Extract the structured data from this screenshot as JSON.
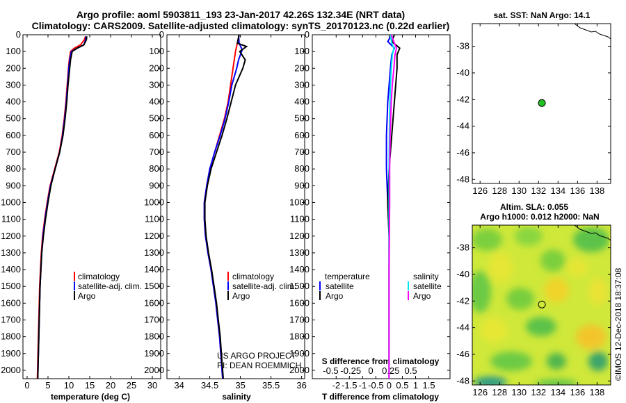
{
  "title": {
    "line1": "Argo profile: aoml 5903811_193 23-Jan-2017 42.26S 132.34E (NRT data)",
    "line2": "Climatology: CARS2009. Satellite-adjusted climatology: synTS_20170123.nc (0.22d earlier)"
  },
  "colors": {
    "climatology": "#ff0000",
    "satellite": "#0000ff",
    "argo": "#000000",
    "sat_temp": "#0000ff",
    "sat_sal": "#00e5ee",
    "argo_sal": "#ff00ff",
    "map_dot": "#22c022"
  },
  "depth_ticks": [
    "0",
    "100",
    "200",
    "300",
    "400",
    "500",
    "600",
    "700",
    "800",
    "900",
    "1000",
    "1100",
    "1200",
    "1300",
    "1400",
    "1500",
    "1600",
    "1700",
    "1800",
    "1900",
    "2000"
  ],
  "temperature_panel": {
    "xlabel": "temperature (deg C)",
    "xticks": [
      "0",
      "5",
      "10",
      "15",
      "20",
      "25",
      "30"
    ],
    "legend": [
      "climatology",
      "satellite-adj. clim.",
      "Argo"
    ]
  },
  "salinity_panel": {
    "xlabel": "salinity",
    "xticks": [
      "34",
      "34.5",
      "35",
      "35.5",
      "36"
    ],
    "legend": [
      "climatology",
      "satellite-adj. clim.",
      "Argo"
    ],
    "credit1": "US ARGO PROJECT",
    "credit2": "PI: DEAN ROEMMICH"
  },
  "difference_panel": {
    "xlabel": "T difference from climatology",
    "xticks": [
      "-2",
      "-1.5",
      "-1",
      "-0.5",
      "0",
      "0.5",
      "1",
      "1.5"
    ],
    "s_label": "S difference from climatology",
    "s_ticks": [
      "-0.5",
      "-0.25",
      "0",
      "0.25",
      "0.5"
    ],
    "legend_temp_head": "temperature",
    "legend_sal_head": "salinity",
    "legend_temp": [
      "satellite",
      "Argo"
    ],
    "legend_sal": [
      "satellite",
      "Argo"
    ]
  },
  "sst_map": {
    "title": "sat. SST: NaN Argo: 14.1",
    "yticks": [
      "-38",
      "-40",
      "-42",
      "-44",
      "-46",
      "-48"
    ],
    "xticks": [
      "126",
      "128",
      "130",
      "132",
      "134",
      "136",
      "138"
    ]
  },
  "sla_map": {
    "title1": "Altim. SLA: 0.055",
    "title2": "Argo h1000: 0.012 h2000: NaN",
    "yticks": [
      "-38",
      "-40",
      "-42",
      "-44",
      "-46",
      "-48"
    ],
    "xticks": [
      "126",
      "128",
      "130",
      "132",
      "134",
      "136",
      "138"
    ]
  },
  "footer": "©IMOS 12-Dec-2018 18:37:08",
  "chart_data": [
    {
      "type": "line",
      "name": "temperature profile",
      "xlabel": "temperature (deg C)",
      "ylabel": "depth",
      "xlim": [
        -1,
        32
      ],
      "ylim": [
        2050,
        0
      ],
      "series": [
        {
          "name": "climatology",
          "depth": [
            10,
            30,
            60,
            80,
            100,
            150,
            200,
            300,
            400,
            500,
            600,
            700,
            800,
            900,
            1000,
            1100,
            1200,
            1300,
            1400,
            1500,
            1600,
            1700,
            1800,
            1900,
            2000,
            2050
          ],
          "values": [
            14.0,
            13.7,
            12.8,
            11.3,
            10.4,
            10.1,
            9.9,
            9.6,
            9.3,
            8.9,
            8.4,
            7.7,
            6.6,
            5.5,
            4.8,
            4.2,
            3.7,
            3.4,
            3.2,
            3.0,
            2.9,
            2.8,
            2.7,
            2.6,
            2.5,
            2.45
          ]
        },
        {
          "name": "satellite-adj. clim.",
          "depth": [
            10,
            30,
            60,
            80,
            100,
            150,
            200,
            300,
            400,
            500,
            600,
            700,
            800,
            900,
            1000,
            1100,
            1200,
            1300,
            1400,
            1500,
            1600,
            1700,
            1800,
            1900,
            2000,
            2050
          ],
          "values": [
            14.1,
            14.0,
            13.6,
            12.0,
            10.6,
            10.2,
            10.0,
            9.7,
            9.4,
            9.0,
            8.5,
            7.8,
            6.7,
            5.6,
            4.9,
            4.3,
            3.8,
            3.5,
            3.3,
            3.1,
            3.0,
            2.9,
            2.8,
            2.7,
            2.6,
            2.55
          ]
        },
        {
          "name": "Argo",
          "depth": [
            10,
            30,
            60,
            80,
            100,
            150,
            200,
            300,
            400,
            500,
            600,
            700,
            800,
            900,
            1000,
            1100,
            1200,
            1300,
            1400,
            1500,
            1600,
            1700,
            1800,
            1900,
            2000,
            2050
          ],
          "values": [
            14.3,
            14.2,
            13.6,
            12.0,
            10.8,
            10.4,
            10.2,
            9.8,
            9.5,
            9.1,
            8.6,
            7.8,
            6.7,
            5.7,
            5.0,
            4.4,
            3.9,
            3.5,
            3.3,
            3.1,
            3.0,
            2.9,
            2.8,
            2.7,
            2.6,
            2.55
          ]
        }
      ]
    },
    {
      "type": "line",
      "name": "salinity profile",
      "xlabel": "salinity",
      "ylabel": "depth",
      "xlim": [
        33.8,
        36.05
      ],
      "ylim": [
        2050,
        0
      ],
      "series": [
        {
          "name": "climatology",
          "depth": [
            0,
            50,
            100,
            150,
            200,
            300,
            400,
            500,
            600,
            700,
            800,
            900,
            1000,
            1100,
            1200,
            1300,
            1400,
            1500,
            1600,
            1700,
            1800,
            1900,
            2000,
            2050
          ],
          "values": [
            34.98,
            34.95,
            34.92,
            34.9,
            34.88,
            34.84,
            34.8,
            34.74,
            34.66,
            34.58,
            34.5,
            34.45,
            34.41,
            34.41,
            34.43,
            34.47,
            34.52,
            34.56,
            34.6,
            34.63,
            34.66,
            34.68,
            34.7,
            34.71
          ]
        },
        {
          "name": "satellite-adj. clim.",
          "depth": [
            0,
            50,
            90,
            150,
            200,
            300,
            400,
            500,
            600,
            700,
            800,
            900,
            1000,
            1100,
            1200,
            1300,
            1400,
            1500,
            1600,
            1700,
            1800,
            1900,
            2000,
            2050
          ],
          "values": [
            34.97,
            34.98,
            35.03,
            34.97,
            34.94,
            34.86,
            34.81,
            34.75,
            34.67,
            34.58,
            34.5,
            34.45,
            34.41,
            34.41,
            34.43,
            34.47,
            34.52,
            34.56,
            34.6,
            34.63,
            34.66,
            34.68,
            34.7,
            34.71
          ]
        },
        {
          "name": "Argo",
          "depth": [
            0,
            50,
            70,
            100,
            150,
            200,
            250,
            300,
            400,
            500,
            600,
            700,
            800,
            900,
            1000,
            1100,
            1200,
            1300,
            1400,
            1500,
            1600,
            1700,
            1800,
            1900,
            2000,
            2050
          ],
          "values": [
            34.98,
            34.95,
            35.1,
            34.99,
            35.08,
            35.04,
            34.98,
            34.92,
            34.85,
            34.78,
            34.7,
            34.61,
            34.52,
            34.46,
            34.42,
            34.42,
            34.44,
            34.48,
            34.53,
            34.57,
            34.61,
            34.64,
            34.67,
            34.69,
            34.71,
            34.72
          ]
        }
      ]
    },
    {
      "type": "line",
      "name": "difference from climatology",
      "xlabel": "T difference from climatology",
      "ylabel": "depth",
      "xlim": [
        -2.9,
        2.3
      ],
      "ylim": [
        2050,
        0
      ],
      "series": [
        {
          "name": "temperature satellite",
          "depth": [
            0,
            40,
            80,
            120,
            200,
            400,
            600,
            800,
            1000,
            1200,
            1400,
            1600,
            1800,
            2000,
            2050
          ],
          "values": [
            0.1,
            -0.05,
            0.2,
            0.1,
            0.05,
            -0.05,
            -0.1,
            -0.1,
            -0.05,
            0.0,
            0.0,
            0.0,
            0.0,
            0.0,
            0.0
          ]
        },
        {
          "name": "temperature Argo",
          "depth": [
            0,
            40,
            80,
            120,
            200,
            400,
            600,
            800,
            1000,
            1200,
            1400,
            1600,
            1800,
            2000,
            2050
          ],
          "values": [
            0.2,
            0.1,
            0.4,
            0.3,
            0.3,
            0.2,
            0.1,
            0.0,
            -0.05,
            0.0,
            0.0,
            0.0,
            0.0,
            0.0,
            0.0
          ]
        },
        {
          "name": "salinity satellite",
          "depth": [
            0,
            50,
            80,
            120,
            200,
            300,
            400,
            600,
            800,
            1000,
            1200,
            1400,
            1600,
            1800,
            2000,
            2050
          ],
          "values": [
            0.05,
            0.1,
            0.18,
            0.12,
            0.08,
            0.05,
            0.03,
            0.01,
            0.0,
            0.0,
            0.0,
            0.0,
            0.0,
            0.0,
            0.0,
            0.0
          ]
        },
        {
          "name": "salinity Argo",
          "depth": [
            0,
            50,
            80,
            120,
            200,
            300,
            400,
            600,
            800,
            1000,
            1200,
            1400,
            1600,
            1800,
            2000,
            2050
          ],
          "values": [
            0.08,
            0.2,
            0.28,
            0.22,
            0.18,
            0.12,
            0.08,
            0.04,
            0.02,
            0.02,
            0.01,
            0.0,
            0.0,
            0.0,
            0.0,
            0.0
          ]
        }
      ]
    },
    {
      "type": "scatter",
      "name": "sat. SST map",
      "xlim": [
        125.2,
        139.4
      ],
      "ylim": [
        -48.3,
        -36.3
      ],
      "points": [
        {
          "lon": 132.34,
          "lat": -42.26
        }
      ]
    },
    {
      "type": "heatmap",
      "name": "Altim. SLA map",
      "xlim": [
        125.2,
        139.4
      ],
      "ylim": [
        -48.3,
        -36.3
      ],
      "points": [
        {
          "lon": 132.34,
          "lat": -42.26
        }
      ]
    }
  ]
}
